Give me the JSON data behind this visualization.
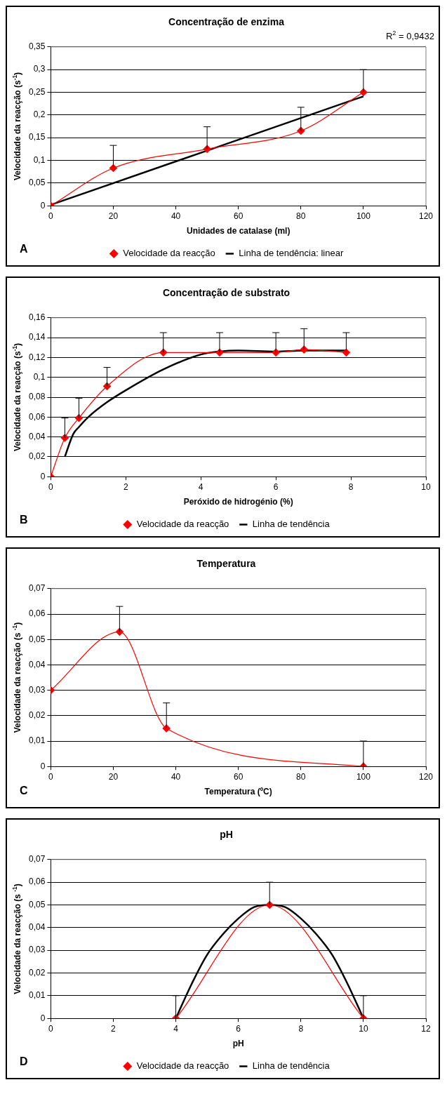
{
  "chart_data": [
    {
      "type": "line",
      "title": "Concentração de enzima",
      "xlabel": "Unidades de catalase (ml)",
      "ylabel": "Velocidade da reacção (s$^{-1}$)",
      "series": [
        {
          "name": "Velocidade da reacção",
          "color": "#ff0000",
          "marker": "diamond",
          "x": [
            0,
            20,
            50,
            80,
            100
          ],
          "values": [
            0,
            0.083,
            0.125,
            0.165,
            0.25
          ],
          "errors": [
            null,
            [
              0.083,
              0.133
            ],
            [
              0.125,
              0.174
            ],
            [
              0.165,
              0.217
            ],
            [
              0.25,
              0.3
            ]
          ]
        },
        {
          "name": "Linha de tendência: linear",
          "color": "#000000",
          "marker": "none",
          "x": [
            0,
            100
          ],
          "values": [
            0.002,
            0.241
          ]
        }
      ],
      "xlim": [
        0,
        120
      ],
      "xticks": [
        0,
        20,
        40,
        60,
        80,
        100,
        120
      ],
      "ylim": [
        0,
        0.35
      ],
      "yticks": [
        {
          "value": 0,
          "label": "0"
        },
        {
          "value": 0.05,
          "label": "0,05"
        },
        {
          "value": 0.1,
          "label": "0,1"
        },
        {
          "value": 0.15,
          "label": "0,15"
        },
        {
          "value": 0.2,
          "label": "0,2"
        },
        {
          "value": 0.25,
          "label": "0,25"
        },
        {
          "value": 0.3,
          "label": "0,3"
        },
        {
          "value": 0.35,
          "label": "0,35"
        }
      ],
      "grid": "y",
      "legend": "bottom",
      "annotations": [
        "R$^{2}$ = 0,9432",
        "A"
      ]
    },
    {
      "type": "line",
      "title": "Concentração de substrato",
      "xlabel": "Peróxido de hidrogénio (%)",
      "ylabel": "Velocidade da reacção (s$^{-1}$)",
      "series": [
        {
          "name": "Velocidade da reacção",
          "color": "#ff0000",
          "marker": "diamond",
          "x": [
            0,
            0.375,
            0.75,
            1.5,
            3,
            4.5,
            6,
            6.75,
            7.875
          ],
          "values": [
            0,
            0.039,
            0.059,
            0.091,
            0.125,
            0.125,
            0.125,
            0.128,
            0.125
          ],
          "errors": [
            null,
            [
              0.039,
              0.059
            ],
            [
              0.059,
              0.079
            ],
            [
              0.091,
              0.11
            ],
            [
              0.125,
              0.145
            ],
            [
              0.125,
              0.145
            ],
            [
              0.125,
              0.145
            ],
            [
              0.128,
              0.149
            ],
            [
              0.125,
              0.145
            ]
          ]
        },
        {
          "name": "Linha de tendência",
          "color": "#000000",
          "marker": "none",
          "x": [
            0.375,
            0.6,
            0.75,
            1,
            1.5,
            2,
            3,
            4,
            4.5,
            5,
            6,
            6.75,
            7.875
          ],
          "values": [
            0.02,
            0.043,
            0.05,
            0.06,
            0.075,
            0.087,
            0.108,
            0.123,
            0.126,
            0.127,
            0.126,
            0.127,
            0.127
          ]
        }
      ],
      "xlim": [
        0,
        10
      ],
      "xticks": [
        0,
        2,
        4,
        6,
        8,
        10
      ],
      "ylim": [
        0,
        0.16
      ],
      "yticks": [
        {
          "value": 0,
          "label": "0"
        },
        {
          "value": 0.02,
          "label": "0,02"
        },
        {
          "value": 0.04,
          "label": "0,04"
        },
        {
          "value": 0.06,
          "label": "0,06"
        },
        {
          "value": 0.08,
          "label": "0,08"
        },
        {
          "value": 0.1,
          "label": "0,1"
        },
        {
          "value": 0.12,
          "label": "0,12"
        },
        {
          "value": 0.14,
          "label": "0,14"
        },
        {
          "value": 0.16,
          "label": "0,16"
        }
      ],
      "grid": "y",
      "legend": "bottom",
      "annotations": [
        "B"
      ]
    },
    {
      "type": "line",
      "title": "Temperatura",
      "xlabel": "Temperatura (ºC)",
      "ylabel": "Velocidade da reacção (s $^{-1}$)",
      "series": [
        {
          "color": "#ff0000",
          "marker": "diamond",
          "x": [
            0,
            22,
            37,
            100
          ],
          "values": [
            0.03,
            0.053,
            0.015,
            0
          ],
          "errors": [
            null,
            [
              0.053,
              0.063
            ],
            [
              0.015,
              0.025
            ],
            [
              0,
              0.01
            ]
          ]
        }
      ],
      "xlim": [
        0,
        120
      ],
      "xticks": [
        0,
        20,
        40,
        60,
        80,
        100,
        120
      ],
      "ylim": [
        0,
        0.07
      ],
      "yticks": [
        {
          "value": 0,
          "label": "0"
        },
        {
          "value": 0.01,
          "label": "0,01"
        },
        {
          "value": 0.02,
          "label": "0,02"
        },
        {
          "value": 0.03,
          "label": "0,03"
        },
        {
          "value": 0.04,
          "label": "0,04"
        },
        {
          "value": 0.05,
          "label": "0,05"
        },
        {
          "value": 0.06,
          "label": "0,06"
        },
        {
          "value": 0.07,
          "label": "0,07"
        }
      ],
      "grid": "y",
      "annotations": [
        "C"
      ]
    },
    {
      "type": "line",
      "title": "pH",
      "xlabel": "pH",
      "ylabel": "Velocidade da reacção (s $^{-1}$)",
      "series": [
        {
          "name": "Velocidade da reacção",
          "color": "#ff0000",
          "marker": "diamond",
          "x": [
            4,
            7,
            10
          ],
          "values": [
            0,
            0.05,
            0
          ],
          "errors": [
            [
              0,
              0.01
            ],
            [
              0.05,
              0.06
            ],
            [
              0,
              0.01
            ]
          ]
        },
        {
          "name": "Linha de tendência",
          "color": "#000000",
          "marker": "none",
          "x": [
            4,
            4.5,
            5,
            5.5,
            6,
            6.5,
            7,
            7.5,
            8,
            8.5,
            9,
            9.5,
            10
          ],
          "values": [
            0,
            0.015,
            0.028,
            0.037,
            0.044,
            0.049,
            0.05,
            0.049,
            0.044,
            0.037,
            0.028,
            0.015,
            0
          ]
        }
      ],
      "xlim": [
        0,
        12
      ],
      "xticks": [
        0,
        2,
        4,
        6,
        8,
        10,
        12
      ],
      "ylim": [
        0,
        0.07
      ],
      "yticks": [
        {
          "value": 0,
          "label": "0"
        },
        {
          "value": 0.01,
          "label": "0,01"
        },
        {
          "value": 0.02,
          "label": "0,02"
        },
        {
          "value": 0.03,
          "label": "0,03"
        },
        {
          "value": 0.04,
          "label": "0,04"
        },
        {
          "value": 0.05,
          "label": "0,05"
        },
        {
          "value": 0.06,
          "label": "0,06"
        },
        {
          "value": 0.07,
          "label": "0,07"
        }
      ],
      "grid": "y",
      "legend": "bottom",
      "annotations": [
        "D"
      ]
    }
  ]
}
